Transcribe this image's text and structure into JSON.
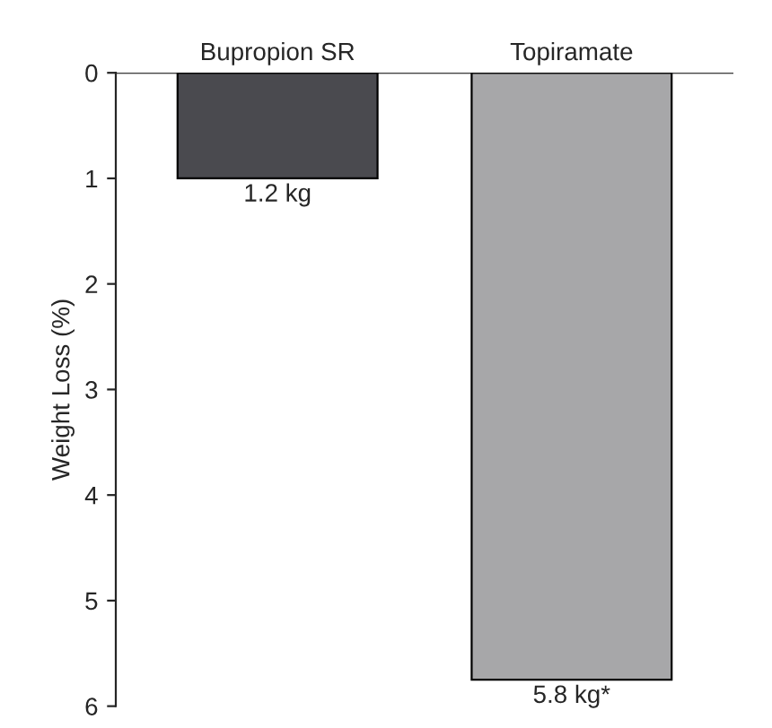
{
  "chart_data": {
    "type": "bar",
    "ylabel": "Weight Loss (%)",
    "categories": [
      "Bupropion SR",
      "Topiramate"
    ],
    "values": [
      1.0,
      5.75
    ],
    "colors": [
      "#4a4a4f",
      "#a7a7a9"
    ],
    "annotations": [
      {
        "text": "1.2 kg",
        "x": "Bupropion SR",
        "y": 1.0
      },
      {
        "text": "5.8 kg*",
        "x": "Topiramate",
        "y": 5.75
      }
    ],
    "ylim": [
      6,
      0
    ],
    "yticks": [
      0,
      1,
      2,
      3,
      4,
      5,
      6
    ],
    "grid": false,
    "legend": false
  }
}
